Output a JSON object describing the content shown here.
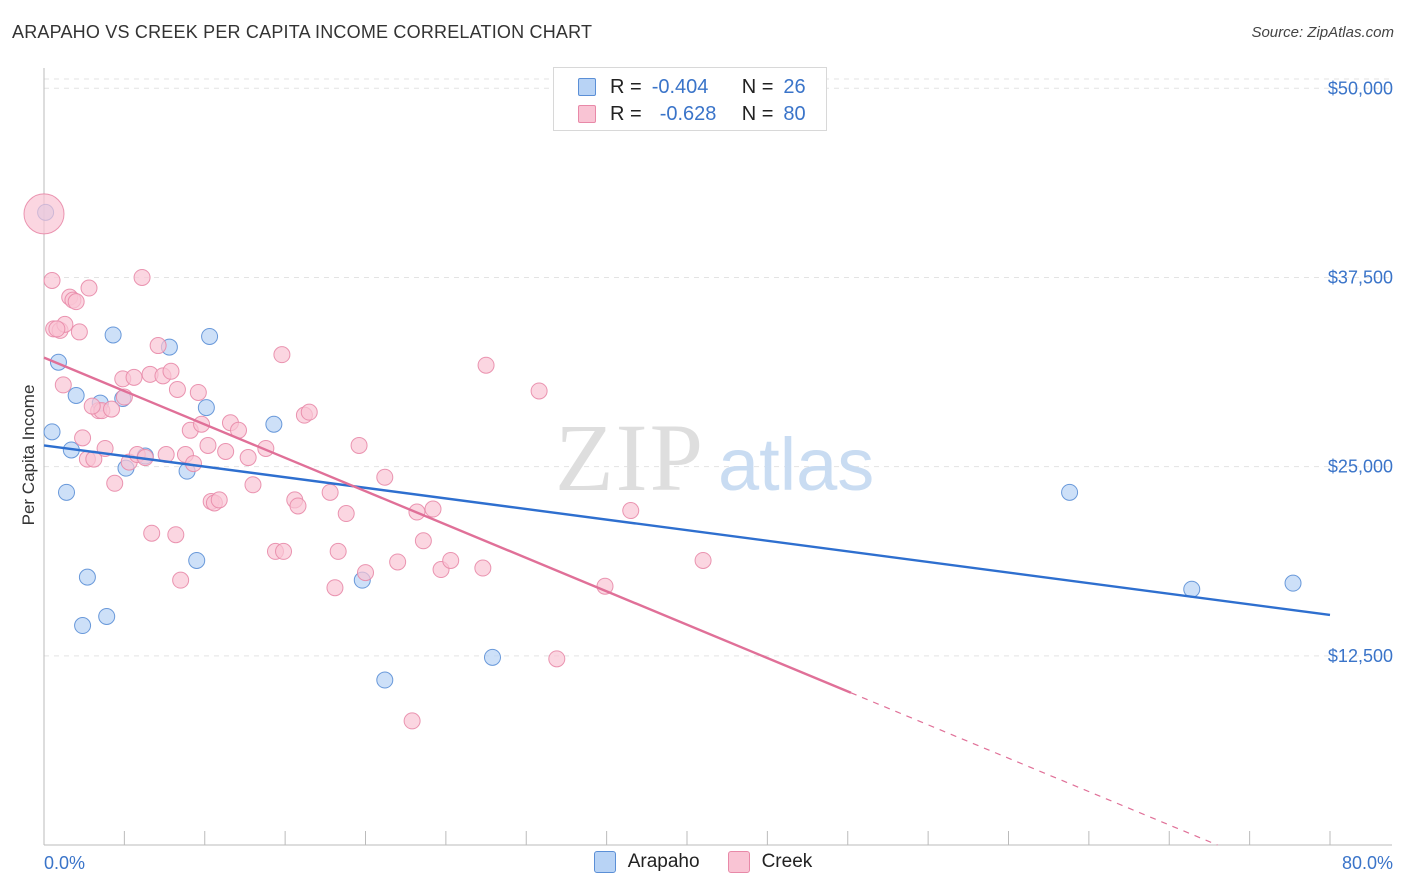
{
  "header": {
    "title": "ARAPAHO VS CREEK PER CAPITA INCOME CORRELATION CHART",
    "source": "Source: ZipAtlas.com"
  },
  "legend": {
    "rows": [
      {
        "r_label": "R = ",
        "r_value": "-0.404",
        "n_label": "N = ",
        "n_value": "26"
      },
      {
        "r_label": "R = ",
        "r_value": "-0.628",
        "n_label": "N = ",
        "n_value": "80"
      }
    ]
  },
  "watermark": {
    "zip": "ZIP",
    "atlas": "atlas"
  },
  "colors": {
    "arapaho_fill": "#b8d3f5",
    "arapaho_stroke": "#5b8fd6",
    "arapaho_line": "#2e6fcf",
    "creek_fill": "#f9c4d4",
    "creek_stroke": "#e889a8",
    "creek_line": "#e07098",
    "tick_label": "#3a74c9",
    "grid": "#e3e3e3"
  },
  "chart_data": {
    "type": "scatter",
    "title": "ARAPAHO VS CREEK PER CAPITA INCOME CORRELATION CHART",
    "xlabel": "",
    "ylabel": "Per Capita Income",
    "xlim": [
      0,
      80
    ],
    "ylim": [
      0,
      52000
    ],
    "x_tick_labels": [
      "0.0%",
      "80.0%"
    ],
    "y_ticks": [
      12500,
      25000,
      37500,
      50000
    ],
    "y_tick_labels": [
      "$12,500",
      "$25,000",
      "$37,500",
      "$50,000"
    ],
    "series": [
      {
        "name": "Arapaho",
        "r": -0.404,
        "n": 26,
        "points": [
          [
            0.1,
            41800
          ],
          [
            0.5,
            27300
          ],
          [
            0.9,
            31900
          ],
          [
            1.4,
            23300
          ],
          [
            1.7,
            26100
          ],
          [
            2.0,
            29700
          ],
          [
            2.4,
            14500
          ],
          [
            2.7,
            17700
          ],
          [
            3.5,
            29200
          ],
          [
            3.9,
            15100
          ],
          [
            4.3,
            33700
          ],
          [
            4.9,
            29500
          ],
          [
            5.1,
            24900
          ],
          [
            6.3,
            25700
          ],
          [
            7.8,
            32900
          ],
          [
            8.9,
            24700
          ],
          [
            9.5,
            18800
          ],
          [
            10.1,
            28900
          ],
          [
            10.3,
            33600
          ],
          [
            14.3,
            27800
          ],
          [
            19.8,
            17500
          ],
          [
            21.2,
            10900
          ],
          [
            27.9,
            12400
          ],
          [
            63.8,
            23300
          ],
          [
            71.4,
            16900
          ],
          [
            77.7,
            17300
          ]
        ],
        "trend": {
          "x": [
            0,
            80
          ],
          "y": [
            26400,
            15200
          ],
          "solid_to_x": 80
        }
      },
      {
        "name": "Creek",
        "r": -0.628,
        "n": 80,
        "points": [
          [
            0.0,
            41700
          ],
          [
            0.5,
            37300
          ],
          [
            0.6,
            34100
          ],
          [
            1.0,
            34000
          ],
          [
            1.3,
            34400
          ],
          [
            1.6,
            36200
          ],
          [
            1.8,
            36000
          ],
          [
            2.0,
            35900
          ],
          [
            2.2,
            33900
          ],
          [
            2.4,
            26900
          ],
          [
            2.7,
            25500
          ],
          [
            2.8,
            36800
          ],
          [
            3.1,
            25500
          ],
          [
            3.4,
            28700
          ],
          [
            3.6,
            28700
          ],
          [
            3.8,
            26200
          ],
          [
            4.2,
            28800
          ],
          [
            4.4,
            23900
          ],
          [
            4.9,
            30800
          ],
          [
            5.0,
            29600
          ],
          [
            5.3,
            25300
          ],
          [
            5.6,
            30900
          ],
          [
            5.8,
            25800
          ],
          [
            6.1,
            37500
          ],
          [
            6.6,
            31100
          ],
          [
            6.7,
            20600
          ],
          [
            7.1,
            33000
          ],
          [
            7.4,
            31000
          ],
          [
            7.6,
            25800
          ],
          [
            7.9,
            31300
          ],
          [
            8.2,
            20500
          ],
          [
            8.3,
            30100
          ],
          [
            8.5,
            17500
          ],
          [
            8.8,
            25800
          ],
          [
            9.1,
            27400
          ],
          [
            9.3,
            25200
          ],
          [
            9.6,
            29900
          ],
          [
            9.8,
            27800
          ],
          [
            10.2,
            26400
          ],
          [
            10.4,
            22700
          ],
          [
            10.6,
            22600
          ],
          [
            10.9,
            22800
          ],
          [
            11.3,
            26000
          ],
          [
            11.6,
            27900
          ],
          [
            12.1,
            27400
          ],
          [
            12.7,
            25600
          ],
          [
            13.0,
            23800
          ],
          [
            13.8,
            26200
          ],
          [
            14.4,
            19400
          ],
          [
            14.8,
            32400
          ],
          [
            14.9,
            19400
          ],
          [
            15.6,
            22800
          ],
          [
            15.8,
            22400
          ],
          [
            16.2,
            28400
          ],
          [
            16.5,
            28600
          ],
          [
            17.8,
            23300
          ],
          [
            18.1,
            17000
          ],
          [
            18.3,
            19400
          ],
          [
            18.8,
            21900
          ],
          [
            19.6,
            26400
          ],
          [
            21.2,
            24300
          ],
          [
            22.0,
            18700
          ],
          [
            22.9,
            8200
          ],
          [
            23.2,
            22000
          ],
          [
            23.6,
            20100
          ],
          [
            24.2,
            22200
          ],
          [
            24.7,
            18200
          ],
          [
            25.3,
            18800
          ],
          [
            27.3,
            18300
          ],
          [
            27.5,
            31700
          ],
          [
            30.8,
            30000
          ],
          [
            31.9,
            12300
          ],
          [
            34.9,
            17100
          ],
          [
            36.5,
            22100
          ],
          [
            41.0,
            18800
          ],
          [
            0.8,
            34100
          ],
          [
            1.2,
            30400
          ],
          [
            6.3,
            25600
          ],
          [
            20.0,
            18000
          ],
          [
            3.0,
            29000
          ]
        ],
        "trend": {
          "x": [
            0,
            73
          ],
          "y": [
            32200,
            0
          ],
          "solid_to_x": 50.2
        }
      }
    ]
  },
  "bottom_legend": {
    "items": [
      "Arapaho",
      "Creek"
    ]
  }
}
